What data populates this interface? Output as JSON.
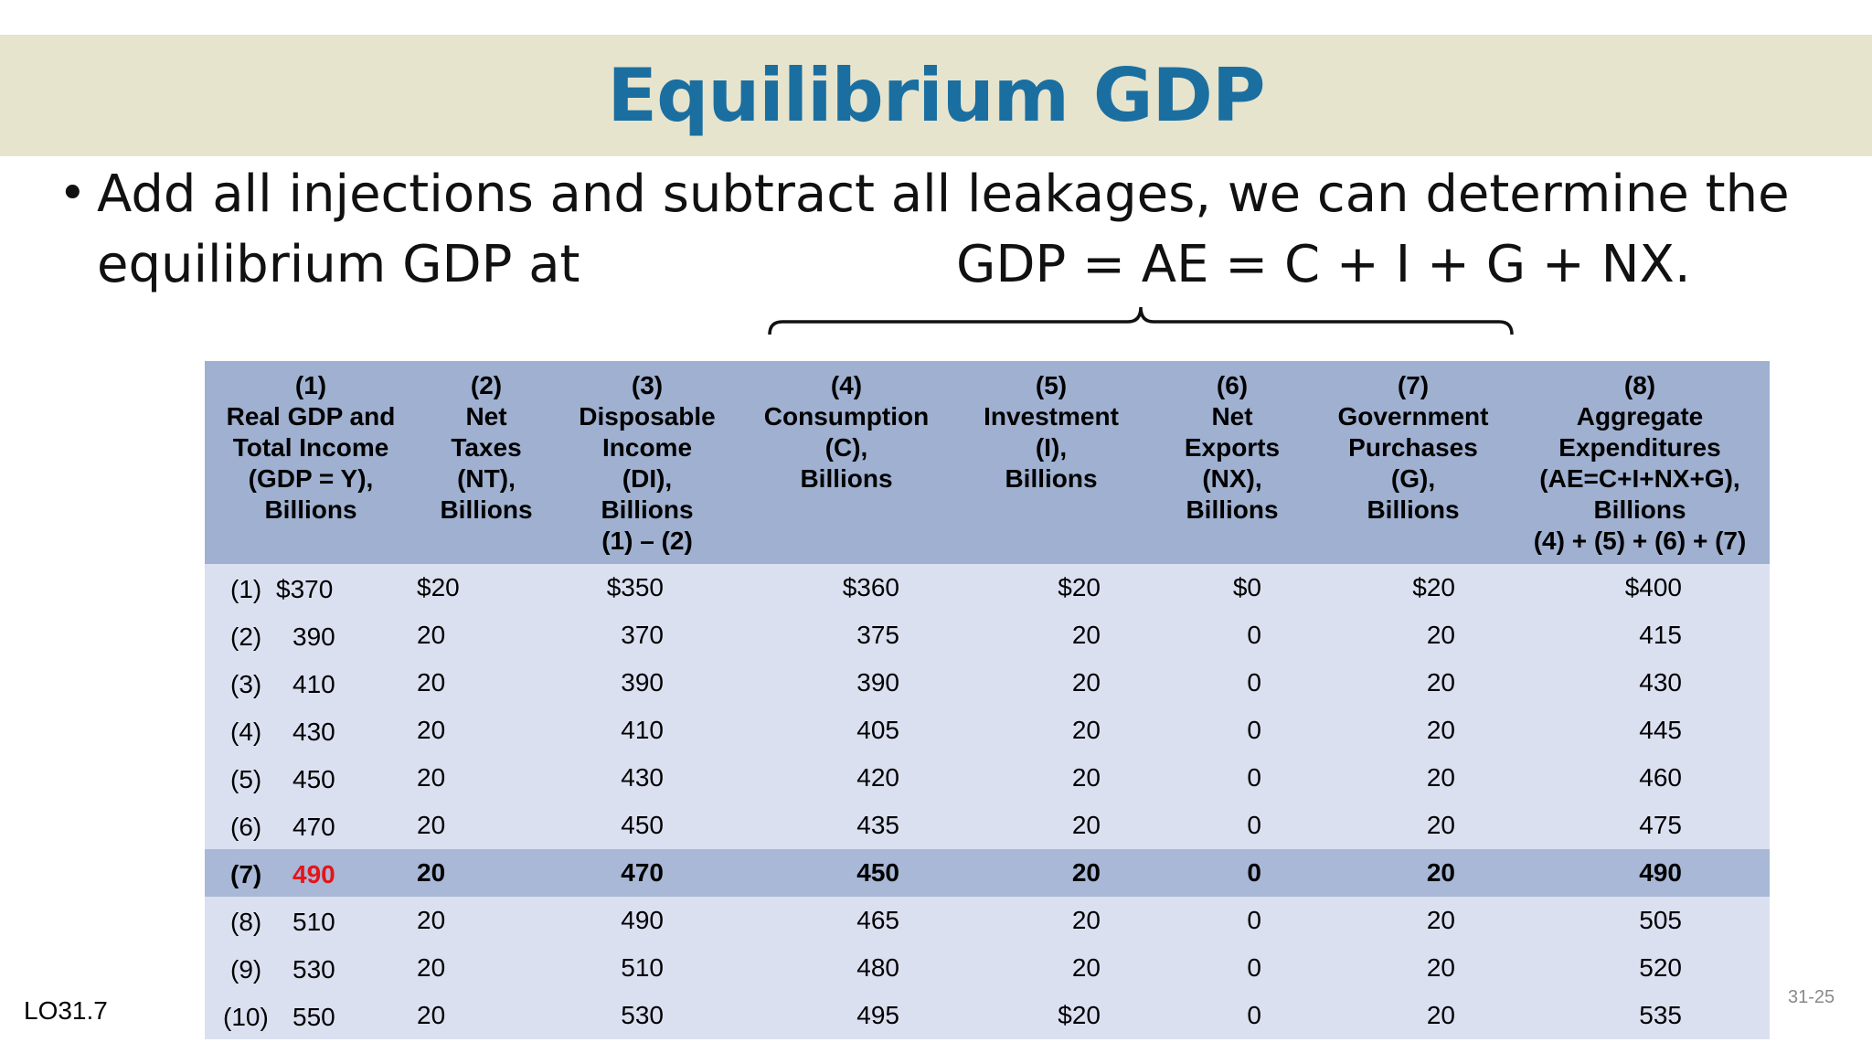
{
  "title": "Equilibrium GDP",
  "bullet": {
    "line1": "Add all injections and subtract all leakages, we can determine the",
    "line2_start": "equilibrium GDP at",
    "line2_end": "GDP = AE = C + I + G + NX."
  },
  "table": {
    "headers": [
      [
        "(1)",
        "Real GDP and",
        "Total Income",
        "(GDP = Y),",
        "Billions"
      ],
      [
        "(2)",
        "Net",
        "Taxes",
        "(NT),",
        "Billions"
      ],
      [
        "(3)",
        "Disposable",
        "Income",
        "(DI),",
        "Billions",
        "(1) – (2)"
      ],
      [
        "(4)",
        "Consumption",
        "(C),",
        "Billions"
      ],
      [
        "(5)",
        "Investment",
        "(I),",
        "Billions"
      ],
      [
        "(6)",
        "Net",
        "Exports",
        "(NX),",
        "Billions"
      ],
      [
        "(7)",
        "Government",
        "Purchases",
        "(G),",
        "Billions"
      ],
      [
        "(8)",
        "Aggregate",
        "Expenditures",
        "(AE=C+I+NX+G),",
        "Billions",
        "(4) + (5) + (6) + (7)"
      ]
    ],
    "rows": [
      [
        "(1)",
        "$370",
        "$20",
        "$350",
        "$360",
        "$20",
        "$0",
        "$20",
        "$400"
      ],
      [
        "(2)",
        "390",
        "20",
        "370",
        "375",
        "20",
        "0",
        "20",
        "415"
      ],
      [
        "(3)",
        "410",
        "20",
        "390",
        "390",
        "20",
        "0",
        "20",
        "430"
      ],
      [
        "(4)",
        "430",
        "20",
        "410",
        "405",
        "20",
        "0",
        "20",
        "445"
      ],
      [
        "(5)",
        "450",
        "20",
        "430",
        "420",
        "20",
        "0",
        "20",
        "460"
      ],
      [
        "(6)",
        "470",
        "20",
        "450",
        "435",
        "20",
        "0",
        "20",
        "475"
      ],
      [
        "(7)",
        "490",
        "20",
        "470",
        "450",
        "20",
        "0",
        "20",
        "490"
      ],
      [
        "(8)",
        "510",
        "20",
        "490",
        "465",
        "20",
        "0",
        "20",
        "505"
      ],
      [
        "(9)",
        "530",
        "20",
        "510",
        "480",
        "20",
        "0",
        "20",
        "520"
      ],
      [
        "(10)",
        "550",
        "20",
        "530",
        "495",
        "$20",
        "0",
        "20",
        "535"
      ]
    ],
    "highlight_row": "(7)",
    "highlight_color": "#e5141b"
  },
  "footer": {
    "lo": "LO31.7",
    "page": "31-25"
  }
}
